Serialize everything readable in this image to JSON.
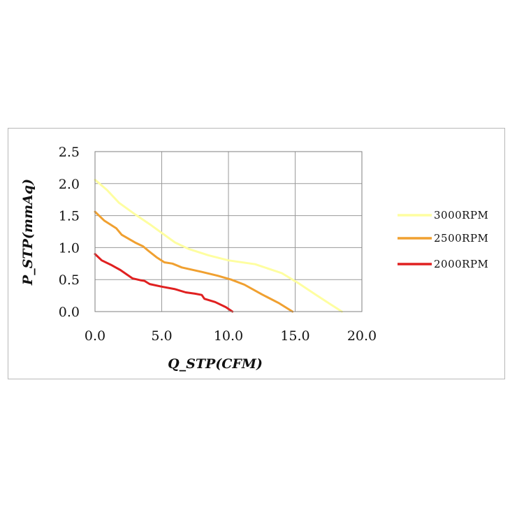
{
  "chart_data": {
    "type": "line",
    "xlabel": "Q_STP(CFM)",
    "ylabel": "P_STP(mmAq)",
    "xlim": [
      0,
      20
    ],
    "ylim": [
      0,
      2.5
    ],
    "x_ticks": [
      "0.0",
      "5.0",
      "10.0",
      "15.0",
      "20.0"
    ],
    "x_tick_values": [
      0,
      5,
      10,
      15,
      20
    ],
    "y_ticks": [
      "0.0",
      "0.5",
      "1.0",
      "1.5",
      "2.0",
      "2.5"
    ],
    "y_tick_values": [
      0,
      0.5,
      1.0,
      1.5,
      2.0,
      2.5
    ],
    "grid": true,
    "legend_position": "right",
    "series": [
      {
        "name": "3000RPM",
        "color": "#fefea0",
        "points": [
          [
            0,
            2.06
          ],
          [
            0.9,
            1.9
          ],
          [
            1.8,
            1.7
          ],
          [
            3.0,
            1.52
          ],
          [
            4.2,
            1.35
          ],
          [
            5.2,
            1.2
          ],
          [
            6.0,
            1.08
          ],
          [
            7.0,
            0.98
          ],
          [
            8.5,
            0.88
          ],
          [
            10.0,
            0.8
          ],
          [
            12.0,
            0.74
          ],
          [
            14.0,
            0.6
          ],
          [
            15.2,
            0.45
          ],
          [
            16.5,
            0.27
          ],
          [
            17.6,
            0.12
          ],
          [
            18.5,
            0.0
          ]
        ]
      },
      {
        "name": "2500RPM",
        "color": "#f0a030",
        "points": [
          [
            0,
            1.56
          ],
          [
            0.7,
            1.42
          ],
          [
            1.6,
            1.3
          ],
          [
            2.0,
            1.2
          ],
          [
            3.0,
            1.08
          ],
          [
            3.6,
            1.02
          ],
          [
            4.0,
            0.95
          ],
          [
            4.6,
            0.85
          ],
          [
            5.2,
            0.77
          ],
          [
            5.8,
            0.75
          ],
          [
            6.5,
            0.69
          ],
          [
            8.0,
            0.62
          ],
          [
            9.2,
            0.56
          ],
          [
            10.2,
            0.5
          ],
          [
            11.2,
            0.42
          ],
          [
            12.5,
            0.27
          ],
          [
            13.8,
            0.13
          ],
          [
            14.8,
            0.0
          ]
        ]
      },
      {
        "name": "2000RPM",
        "color": "#e02020",
        "points": [
          [
            0,
            0.9
          ],
          [
            0.5,
            0.8
          ],
          [
            1.2,
            0.73
          ],
          [
            1.9,
            0.65
          ],
          [
            2.8,
            0.52
          ],
          [
            3.4,
            0.49
          ],
          [
            3.7,
            0.48
          ],
          [
            4.1,
            0.43
          ],
          [
            5.0,
            0.39
          ],
          [
            6.0,
            0.35
          ],
          [
            6.8,
            0.3
          ],
          [
            7.5,
            0.28
          ],
          [
            8.0,
            0.26
          ],
          [
            8.2,
            0.2
          ],
          [
            9.0,
            0.15
          ],
          [
            9.8,
            0.07
          ],
          [
            10.3,
            0.0
          ]
        ]
      }
    ]
  }
}
